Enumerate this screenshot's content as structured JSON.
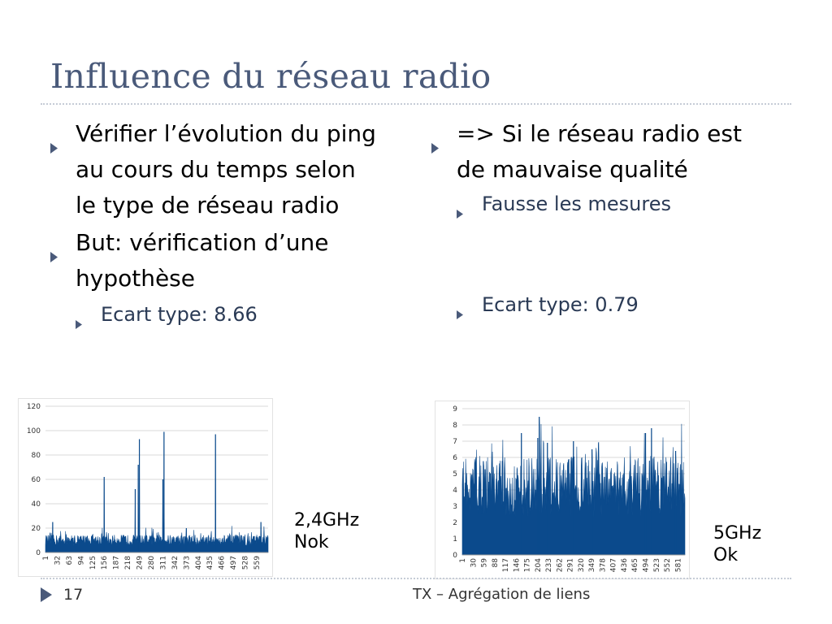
{
  "title": "Influence du réseau radio",
  "left": {
    "bullets": [
      {
        "line1": "Vérifier l’évolution du ping",
        "line2": "au cours du temps selon",
        "line3": "le type de réseau radio"
      },
      {
        "line1": "But: vérification d’une",
        "line2": "hypothèse"
      }
    ],
    "sub": "Ecart type: 8.66"
  },
  "right": {
    "bullet_line1": "=> Si le réseau radio est",
    "bullet_line2": "de mauvaise qualité",
    "sub1": "Fausse les mesures",
    "sub2": "Ecart type: 0.79"
  },
  "notes": {
    "left_line1": "2,4GHz",
    "left_line2": "Nok",
    "right_line1": "5GHz",
    "right_line2": "Ok"
  },
  "footer": {
    "page": "17",
    "text": "TX – Agrégation de liens"
  },
  "colors": {
    "title": "#4a5a7a",
    "series": "#0b4a8c",
    "bullet": "#4a5a7a"
  },
  "chart_data": [
    {
      "type": "area",
      "title": "",
      "xlabel": "",
      "ylabel": "",
      "ylim": [
        0,
        120
      ],
      "y_ticks": [
        0,
        20,
        40,
        60,
        80,
        100,
        120
      ],
      "x_ticks": [
        "1",
        "32",
        "63",
        "94",
        "125",
        "156",
        "187",
        "218",
        "249",
        "280",
        "311",
        "342",
        "373",
        "404",
        "435",
        "466",
        "497",
        "528",
        "559"
      ],
      "n_points": 589,
      "baseline": 10,
      "spikes": [
        {
          "x": 20,
          "y": 25
        },
        {
          "x": 156,
          "y": 62
        },
        {
          "x": 238,
          "y": 52
        },
        {
          "x": 246,
          "y": 72
        },
        {
          "x": 249,
          "y": 93
        },
        {
          "x": 311,
          "y": 60
        },
        {
          "x": 314,
          "y": 99
        },
        {
          "x": 373,
          "y": 20
        },
        {
          "x": 450,
          "y": 97
        },
        {
          "x": 570,
          "y": 25
        }
      ],
      "grid": true,
      "legend": "none"
    },
    {
      "type": "area",
      "title": "",
      "xlabel": "",
      "ylabel": "",
      "ylim": [
        0,
        9
      ],
      "y_ticks": [
        0,
        1,
        2,
        3,
        4,
        5,
        6,
        7,
        8,
        9
      ],
      "x_ticks": [
        "1",
        "30",
        "59",
        "88",
        "117",
        "146",
        "175",
        "204",
        "233",
        "262",
        "291",
        "320",
        "349",
        "378",
        "407",
        "436",
        "465",
        "494",
        "523",
        "552",
        "581"
      ],
      "n_points": 600,
      "baseline": 4.2,
      "spikes": [
        {
          "x": 160,
          "y": 7.5
        },
        {
          "x": 204,
          "y": 7.2
        },
        {
          "x": 208,
          "y": 8.5
        },
        {
          "x": 230,
          "y": 6.9
        },
        {
          "x": 300,
          "y": 7.0
        },
        {
          "x": 350,
          "y": 6.5
        },
        {
          "x": 494,
          "y": 7.5
        },
        {
          "x": 510,
          "y": 7.8
        },
        {
          "x": 575,
          "y": 6.4
        }
      ],
      "grid": true,
      "legend": "none"
    }
  ]
}
